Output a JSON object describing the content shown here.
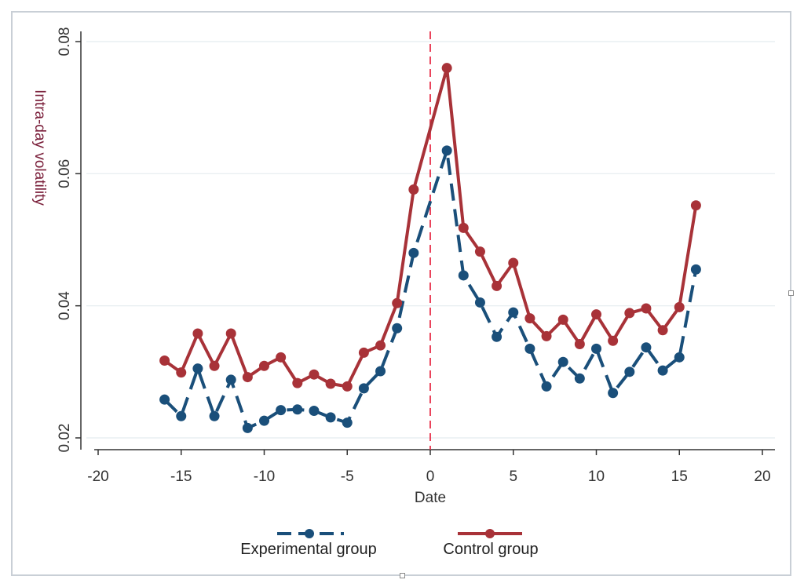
{
  "chart_data": {
    "type": "line",
    "xlabel": "Date",
    "ylabel": "Intra-day volatility",
    "xlim": [
      -20,
      20
    ],
    "ylim": [
      0.02,
      0.08
    ],
    "xticks": [
      "-20",
      "-15",
      "-10",
      "-5",
      "0",
      "5",
      "10",
      "15",
      "20"
    ],
    "yticks": [
      "0.02",
      "0.04",
      "0.06",
      "0.08"
    ],
    "grid": true,
    "event_line_x": 0,
    "legend_position": "bottom",
    "series": [
      {
        "name": "Experimental group",
        "color": "#1a4f7a",
        "style": "dashed",
        "x": [
          -16,
          -15,
          -14,
          -13,
          -12,
          -11,
          -10,
          -9,
          -8,
          -7,
          -6,
          -5,
          -4,
          -3,
          -2,
          -1,
          1,
          2,
          3,
          4,
          5,
          6,
          7,
          8,
          9,
          10,
          11,
          12,
          13,
          14,
          15,
          16
        ],
        "values": [
          0.0258,
          0.0233,
          0.0305,
          0.0233,
          0.0288,
          0.0215,
          0.0226,
          0.0242,
          0.0243,
          0.0241,
          0.0231,
          0.0223,
          0.0275,
          0.0301,
          0.0366,
          0.048,
          0.0635,
          0.0446,
          0.0405,
          0.0353,
          0.039,
          0.0335,
          0.0278,
          0.0315,
          0.029,
          0.0335,
          0.0268,
          0.03,
          0.0337,
          0.0302,
          0.0322,
          0.0455
        ]
      },
      {
        "name": "Control group",
        "color": "#a83238",
        "style": "solid",
        "x": [
          -16,
          -15,
          -14,
          -13,
          -12,
          -11,
          -10,
          -9,
          -8,
          -7,
          -6,
          -5,
          -4,
          -3,
          -2,
          -1,
          1,
          2,
          3,
          4,
          5,
          6,
          7,
          8,
          9,
          10,
          11,
          12,
          13,
          14,
          15,
          16
        ],
        "values": [
          0.0317,
          0.0299,
          0.0358,
          0.0309,
          0.0358,
          0.0292,
          0.0309,
          0.0322,
          0.0283,
          0.0296,
          0.0282,
          0.0278,
          0.0329,
          0.034,
          0.0404,
          0.0576,
          0.076,
          0.0518,
          0.0482,
          0.043,
          0.0465,
          0.0381,
          0.0354,
          0.0379,
          0.0342,
          0.0387,
          0.0347,
          0.0389,
          0.0396,
          0.0363,
          0.0398,
          0.0552
        ]
      }
    ]
  }
}
